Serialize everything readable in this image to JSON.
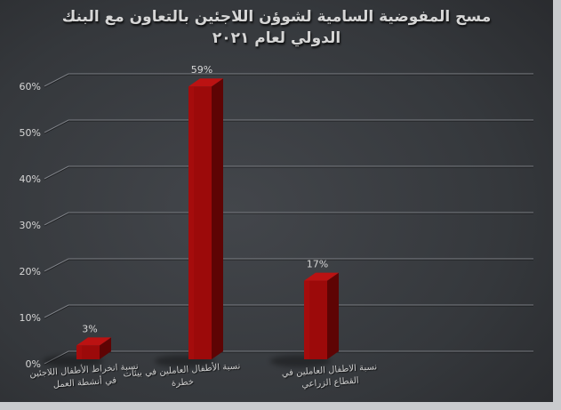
{
  "slide": {
    "title": "مسح المفوضية السامية لشوؤن اللاجئين بالتعاون مع البنك الدولي لعام ٢٠٢١"
  },
  "colors": {
    "bar_front": "#9c0a0a",
    "bar_front_light": "#ad0e0e",
    "bar_top": "#bb1212",
    "bar_side": "#5e0404",
    "gridline": "#7e8187",
    "text": "#d6d6d6",
    "background_center": "#43464b",
    "background_edge": "#242528",
    "frame": "#c9cbce"
  },
  "chart_data": {
    "type": "bar",
    "style": "3d-column",
    "title": "مسح المفوضية السامية لشوؤن اللاجئين بالتعاون مع البنك الدولي لعام ٢٠٢١",
    "title_lines": [
      "مسح المفوضية السامية لشوؤن اللاجئين بالتعاون مع البنك",
      "الدولي لعام ٢٠٢١"
    ],
    "categories": [
      "نسبة انخراط الأطفال اللاجئين في أنشطة العمل",
      "نسبة الأطفال العاملين في بيئات خطرة",
      "نسبة الاطفال العاملين في القطاع الزراعي"
    ],
    "category_lines": [
      [
        "نسبة انخراط الأطفال اللاجئين",
        "في أنشطة العمل"
      ],
      [
        "نسبة الأطفال العاملين في بيئات",
        "خطرة"
      ],
      [
        "نسبة الاطفال العاملين في",
        "القطاع الزراعي"
      ]
    ],
    "values": [
      3,
      59,
      17
    ],
    "data_labels": [
      "3%",
      "59%",
      "17%"
    ],
    "y_ticks": [
      "0%",
      "10%",
      "20%",
      "30%",
      "40%",
      "50%",
      "60%"
    ],
    "ylim": [
      0,
      60
    ],
    "xlabel": "",
    "ylabel": "",
    "grid": true,
    "legend": "none"
  }
}
